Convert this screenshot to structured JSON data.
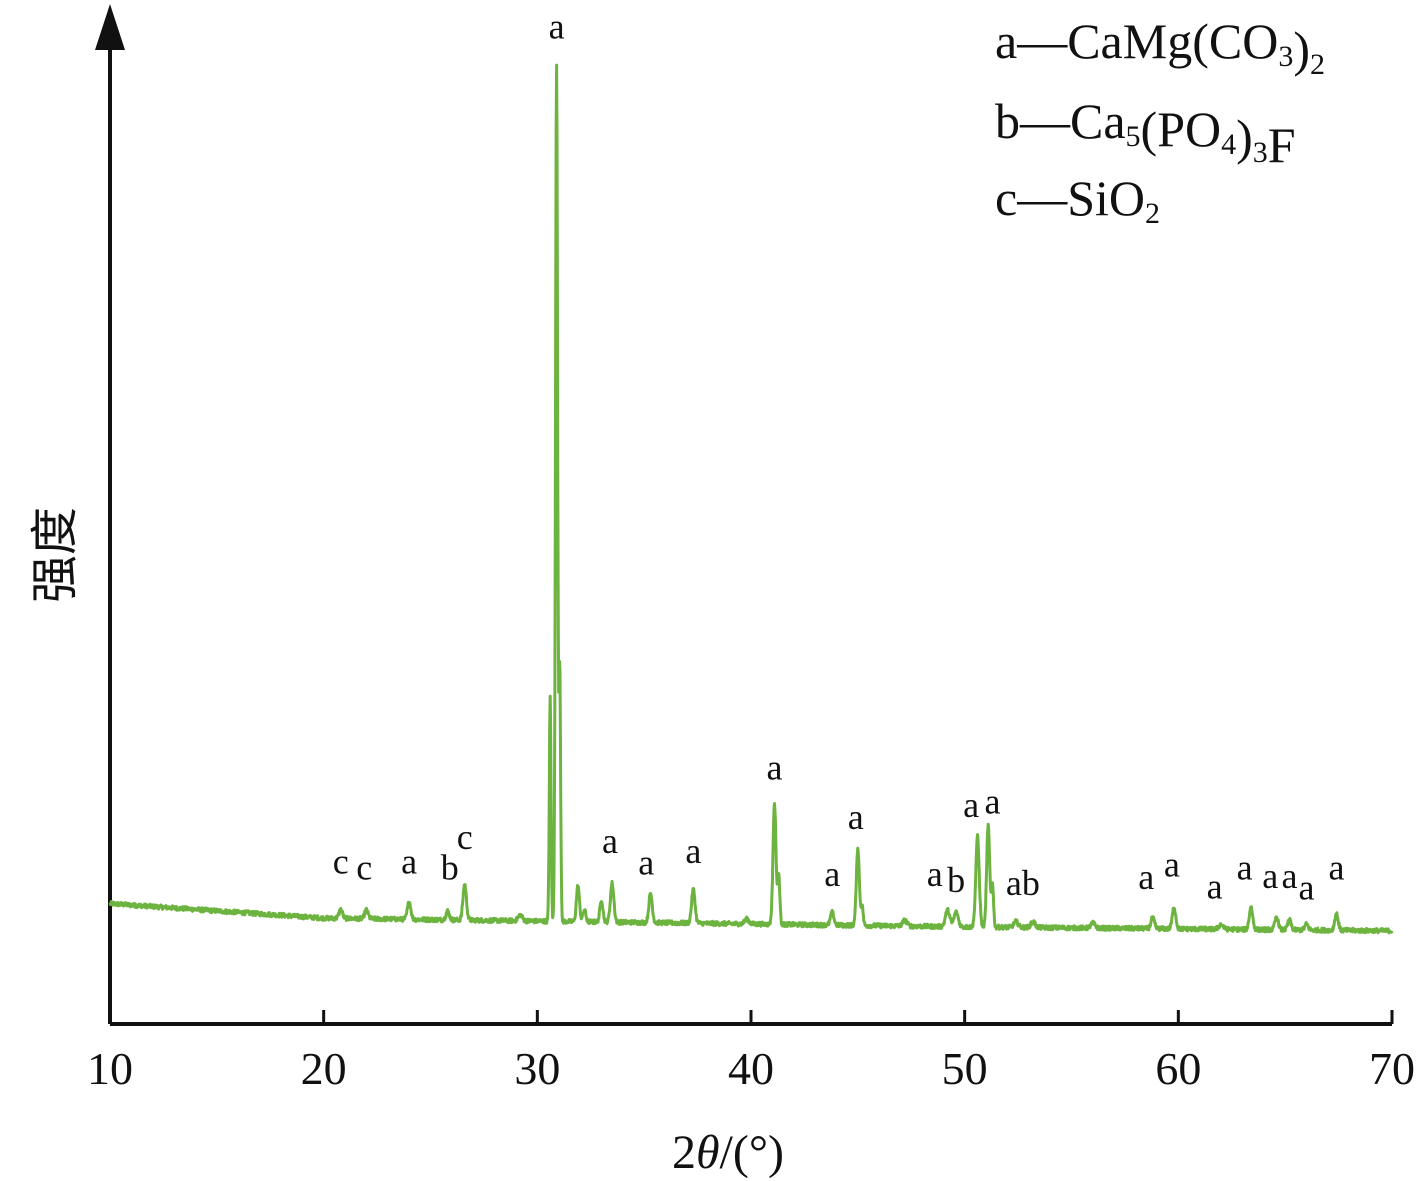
{
  "chart_data": {
    "type": "line",
    "title": "",
    "xlabel_parts": [
      "2",
      "θ",
      "/(°)"
    ],
    "ylabel": "强度",
    "xlim": [
      10,
      70
    ],
    "ylim": [
      0,
      100
    ],
    "x_ticks": [
      10,
      20,
      30,
      40,
      50,
      60,
      70
    ],
    "grid": false,
    "line_color": "#6db33f",
    "axis_color": "#111111",
    "legend": {
      "placement": "top-right",
      "entries": [
        {
          "marker": "a",
          "dash": "—",
          "parts": [
            {
              "t": "CaMg(CO",
              "sub": false
            },
            {
              "t": "3",
              "sub": true
            },
            {
              "t": ")",
              "sub": false
            },
            {
              "t": "2",
              "sub": true
            }
          ]
        },
        {
          "marker": "b",
          "dash": "—",
          "parts": [
            {
              "t": "Ca",
              "sub": false
            },
            {
              "t": "5",
              "sub": true
            },
            {
              "t": "(PO",
              "sub": false
            },
            {
              "t": "4",
              "sub": true
            },
            {
              "t": ")",
              "sub": false
            },
            {
              "t": "3",
              "sub": true
            },
            {
              "t": "F",
              "sub": false
            }
          ]
        },
        {
          "marker": "c",
          "dash": "—",
          "parts": [
            {
              "t": "SiO",
              "sub": false
            },
            {
              "t": "2",
              "sub": true
            }
          ]
        }
      ]
    },
    "baseline": [
      [
        10,
        12.4
      ],
      [
        20,
        10.9
      ],
      [
        30,
        10.6
      ],
      [
        40,
        10.3
      ],
      [
        50,
        10.0
      ],
      [
        60,
        9.8
      ],
      [
        70,
        9.6
      ]
    ],
    "peaks": [
      {
        "x": 20.8,
        "h": 0.9,
        "w": 0.08
      },
      {
        "x": 22.0,
        "h": 0.9,
        "w": 0.08
      },
      {
        "x": 24.0,
        "h": 1.8,
        "w": 0.08
      },
      {
        "x": 25.8,
        "h": 0.9,
        "w": 0.08
      },
      {
        "x": 26.6,
        "h": 3.7,
        "w": 0.08
      },
      {
        "x": 29.2,
        "h": 0.6,
        "w": 0.1
      },
      {
        "x": 30.6,
        "h": 23.0,
        "w": 0.04
      },
      {
        "x": 30.9,
        "h": 88.0,
        "w": 0.05
      },
      {
        "x": 31.05,
        "h": 26.0,
        "w": 0.04
      },
      {
        "x": 31.9,
        "h": 3.7,
        "w": 0.07
      },
      {
        "x": 32.2,
        "h": 1.2,
        "w": 0.07
      },
      {
        "x": 33.0,
        "h": 2.3,
        "w": 0.07
      },
      {
        "x": 33.5,
        "h": 4.0,
        "w": 0.08
      },
      {
        "x": 35.3,
        "h": 3.0,
        "w": 0.08
      },
      {
        "x": 37.3,
        "h": 3.5,
        "w": 0.08
      },
      {
        "x": 39.8,
        "h": 0.5,
        "w": 0.1
      },
      {
        "x": 41.1,
        "h": 12.5,
        "w": 0.07
      },
      {
        "x": 41.3,
        "h": 5.0,
        "w": 0.05
      },
      {
        "x": 43.8,
        "h": 1.3,
        "w": 0.08
      },
      {
        "x": 45.0,
        "h": 8.0,
        "w": 0.07
      },
      {
        "x": 45.2,
        "h": 2.0,
        "w": 0.05
      },
      {
        "x": 47.2,
        "h": 0.6,
        "w": 0.1
      },
      {
        "x": 49.2,
        "h": 1.7,
        "w": 0.1
      },
      {
        "x": 49.6,
        "h": 1.5,
        "w": 0.1
      },
      {
        "x": 50.6,
        "h": 9.3,
        "w": 0.08
      },
      {
        "x": 51.1,
        "h": 10.5,
        "w": 0.07
      },
      {
        "x": 51.3,
        "h": 4.5,
        "w": 0.05
      },
      {
        "x": 52.4,
        "h": 0.6,
        "w": 0.1
      },
      {
        "x": 53.2,
        "h": 0.6,
        "w": 0.1
      },
      {
        "x": 56.0,
        "h": 0.5,
        "w": 0.1
      },
      {
        "x": 58.8,
        "h": 1.1,
        "w": 0.08
      },
      {
        "x": 59.8,
        "h": 2.2,
        "w": 0.08
      },
      {
        "x": 62.0,
        "h": 0.5,
        "w": 0.1
      },
      {
        "x": 63.4,
        "h": 2.3,
        "w": 0.08
      },
      {
        "x": 64.6,
        "h": 1.3,
        "w": 0.08
      },
      {
        "x": 65.2,
        "h": 1.0,
        "w": 0.08
      },
      {
        "x": 66.0,
        "h": 0.6,
        "w": 0.08
      },
      {
        "x": 67.4,
        "h": 1.7,
        "w": 0.08
      }
    ],
    "peak_labels": [
      {
        "text": "c",
        "x": 20.8,
        "y": 15.5
      },
      {
        "text": "c",
        "x": 21.9,
        "y": 14.9
      },
      {
        "text": "a",
        "x": 24.0,
        "y": 15.5
      },
      {
        "text": "b",
        "x": 25.9,
        "y": 14.9
      },
      {
        "text": "c",
        "x": 26.6,
        "y": 18.0
      },
      {
        "text": "a",
        "x": 30.9,
        "y": 101.5
      },
      {
        "text": "a",
        "x": 33.4,
        "y": 17.6
      },
      {
        "text": "a",
        "x": 35.1,
        "y": 15.4
      },
      {
        "text": "a",
        "x": 37.3,
        "y": 16.6
      },
      {
        "text": "a",
        "x": 41.1,
        "y": 25.2
      },
      {
        "text": "a",
        "x": 43.8,
        "y": 14.2
      },
      {
        "text": "a",
        "x": 44.9,
        "y": 20.1
      },
      {
        "text": "a",
        "x": 48.6,
        "y": 14.2
      },
      {
        "text": "b",
        "x": 49.6,
        "y": 13.6
      },
      {
        "text": "a",
        "x": 50.3,
        "y": 21.3
      },
      {
        "text": "a",
        "x": 51.3,
        "y": 21.7
      },
      {
        "text": "a",
        "x": 52.3,
        "y": 13.3
      },
      {
        "text": "b",
        "x": 53.1,
        "y": 13.3
      },
      {
        "text": "a",
        "x": 58.5,
        "y": 13.9
      },
      {
        "text": "a",
        "x": 59.7,
        "y": 15.2
      },
      {
        "text": "a",
        "x": 61.7,
        "y": 12.9
      },
      {
        "text": "a",
        "x": 63.1,
        "y": 14.9
      },
      {
        "text": "a",
        "x": 64.3,
        "y": 14.0
      },
      {
        "text": "a",
        "x": 65.2,
        "y": 14.0
      },
      {
        "text": "a",
        "x": 66.0,
        "y": 12.8
      },
      {
        "text": "a",
        "x": 67.4,
        "y": 14.9
      }
    ]
  }
}
